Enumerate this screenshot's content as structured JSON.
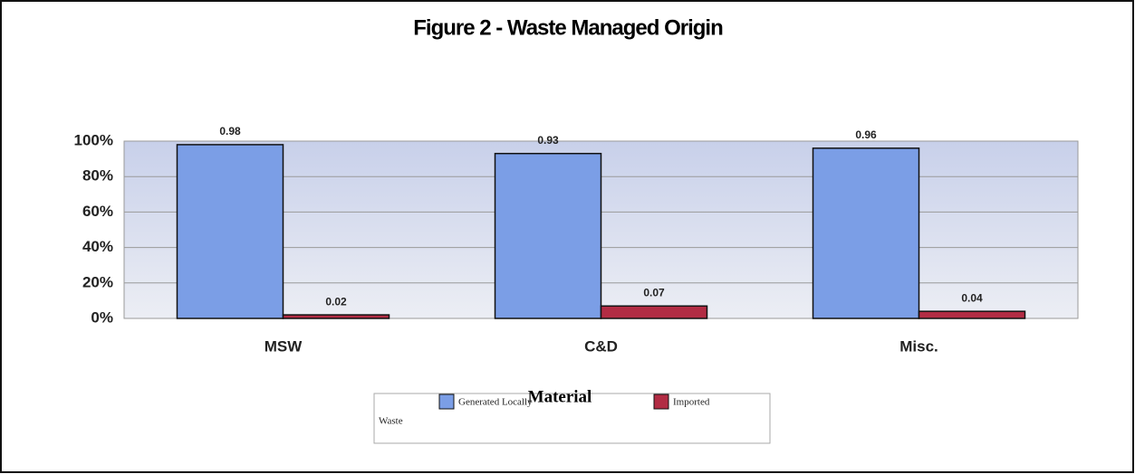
{
  "chart_data": {
    "type": "bar",
    "title": "Figure 2 - Waste Managed Origin",
    "categories": [
      "MSW",
      "C&D",
      "Misc."
    ],
    "series": [
      {
        "name": "Generated Locally",
        "color": "#7b9ee6",
        "values": [
          0.98,
          0.93,
          0.96
        ]
      },
      {
        "name": "Imported",
        "color": "#b22c44",
        "values": [
          0.02,
          0.07,
          0.04
        ]
      }
    ],
    "ylim": [
      0,
      1
    ],
    "yticks": [
      {
        "value": 0,
        "label": "0%"
      },
      {
        "value": 0.2,
        "label": "20%"
      },
      {
        "value": 0.4,
        "label": "40%"
      },
      {
        "value": 0.6,
        "label": "60%"
      },
      {
        "value": 0.8,
        "label": "80%"
      },
      {
        "value": 1,
        "label": "100%"
      }
    ],
    "grid": true,
    "xlabel": "Material",
    "annotations": [
      "Waste"
    ],
    "legend": "bottom"
  }
}
